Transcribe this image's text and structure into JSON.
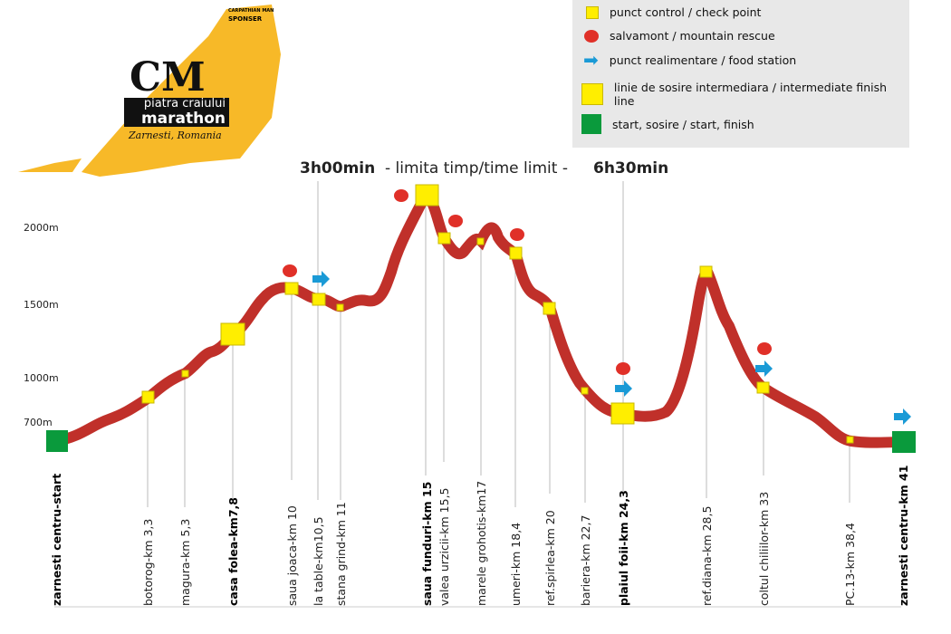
{
  "logo": {
    "brand": "CM",
    "line1": "piatra craiului",
    "line2": "marathon",
    "place": "Zarnesti, Romania",
    "sponsor1": "CARPATHIAN MAN",
    "sponsor2": "SPONSER"
  },
  "legend": [
    {
      "icon": "yellow-small-square",
      "label": "punct control / check point"
    },
    {
      "icon": "red-circle",
      "label": "salvamont / mountain rescue"
    },
    {
      "icon": "blue-arrow",
      "label": "punct realimentare / food station"
    },
    {
      "icon": "yellow-large-square",
      "label": "linie de sosire intermediara / intermediate finish line"
    },
    {
      "icon": "green-square",
      "label": "start, sosire / start, finish"
    }
  ],
  "time_limits": {
    "first": "3h00min",
    "middle": "- limita timp/time limit -",
    "second": "6h30min"
  },
  "axis": [
    "2000m",
    "1500m",
    "1000m",
    "700m"
  ],
  "checkpoints": [
    "zarnesti centru-start",
    "botorog-km 3,3",
    "magura-km 5,3",
    "casa folea-km7,8",
    "saua joaca-km 10",
    "la table-km10,5",
    "stana grind-km 11",
    "saua funduri-km 15",
    "valea urzicii-km 15,5",
    "marele grohotis-km17",
    "umeri-km 18,4",
    "ref.spirlea-km 20",
    "bariera-km 22,7",
    "plaiul foii-km 24,3",
    "ref.diana-km 28,5",
    "coltul chiliilor-km 33",
    "PC.13-km 38,4",
    "zarnesti centru-km 41"
  ],
  "colors": {
    "profile": "#c0302a",
    "yellow": "#ffee00",
    "green": "#0a9a3c",
    "red": "#e03028",
    "blue": "#1a9ad6",
    "logo": "#f7b928"
  }
}
